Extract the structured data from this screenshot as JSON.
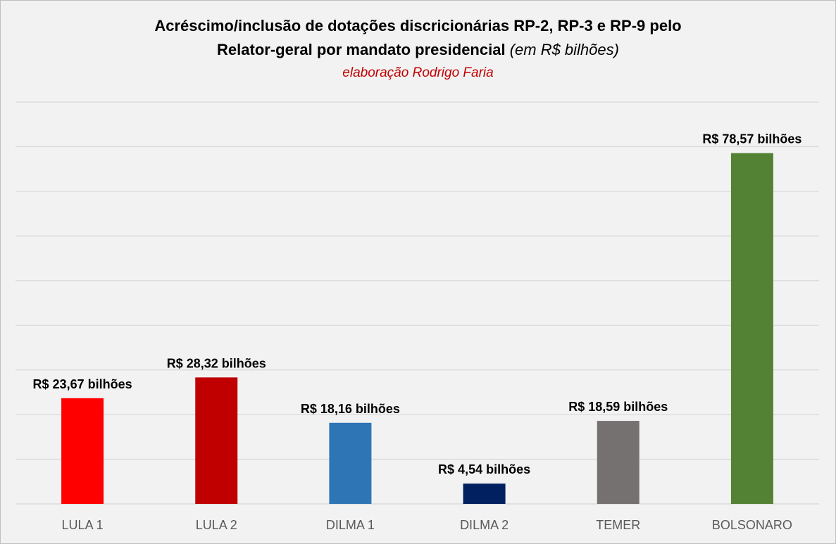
{
  "chart_data": {
    "type": "bar",
    "title_line1": "Acréscimo/inclusão de dotações discricionárias RP-2, RP-3 e RP-9 pelo",
    "title_line2": "Relator-geral por mandato presidencial",
    "title_unit": "(em R$ bilhões)",
    "subtitle": "elaboração Rodrigo Faria",
    "categories": [
      "LULA 1",
      "LULA 2",
      "DILMA 1",
      "DILMA 2",
      "TEMER",
      "BOLSONARO"
    ],
    "values": [
      23.67,
      28.32,
      18.16,
      4.54,
      18.59,
      78.57
    ],
    "data_labels": [
      "R$ 23,67 bilhões",
      "R$ 28,32 bilhões",
      "R$ 18,16 bilhões",
      "R$ 4,54 bilhões",
      "R$ 18,59 bilhões",
      "R$ 78,57 bilhões"
    ],
    "colors": [
      "#ff0000",
      "#c00000",
      "#2e75b6",
      "#002060",
      "#767171",
      "#548235"
    ],
    "ylim": [
      0,
      90
    ],
    "grid": true,
    "gridline_count": 9,
    "legend": "none"
  }
}
